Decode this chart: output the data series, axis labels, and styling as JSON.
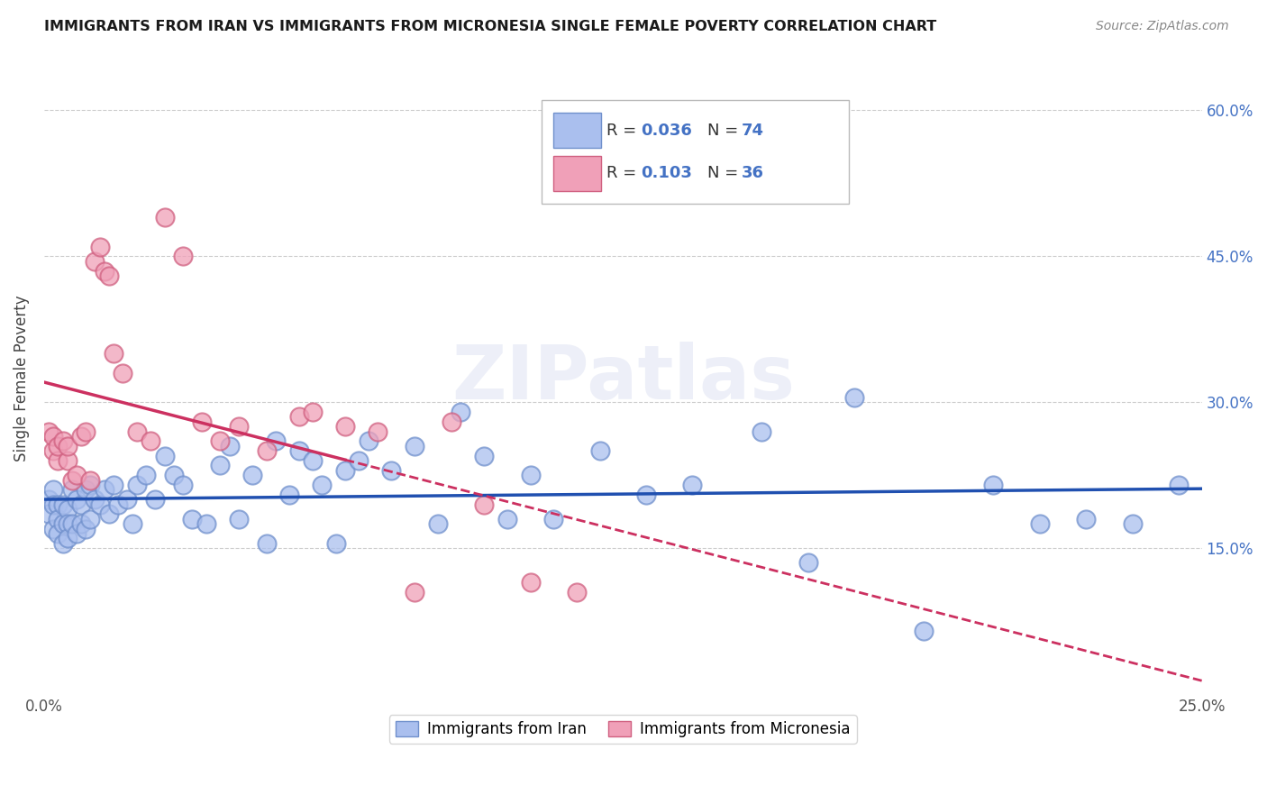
{
  "title": "IMMIGRANTS FROM IRAN VS IMMIGRANTS FROM MICRONESIA SINGLE FEMALE POVERTY CORRELATION CHART",
  "source": "Source: ZipAtlas.com",
  "ylabel": "Single Female Poverty",
  "xlim": [
    0.0,
    0.25
  ],
  "ylim": [
    0.0,
    0.65
  ],
  "iran_color": "#aabfee",
  "iran_edge_color": "#7090cc",
  "micronesia_color": "#f0a0b8",
  "micronesia_edge_color": "#d06080",
  "iran_line_color": "#2050b0",
  "micronesia_line_color": "#cc3060",
  "watermark": "ZIPatlas",
  "iran_R": "0.036",
  "iran_N": "74",
  "micronesia_R": "0.103",
  "micronesia_N": "36",
  "iran_legend_label": "Immigrants from Iran",
  "micronesia_legend_label": "Immigrants from Micronesia",
  "iran_x": [
    0.001,
    0.001,
    0.002,
    0.002,
    0.002,
    0.003,
    0.003,
    0.003,
    0.004,
    0.004,
    0.004,
    0.005,
    0.005,
    0.005,
    0.006,
    0.006,
    0.007,
    0.007,
    0.008,
    0.008,
    0.009,
    0.009,
    0.01,
    0.01,
    0.011,
    0.012,
    0.013,
    0.014,
    0.015,
    0.016,
    0.018,
    0.019,
    0.02,
    0.022,
    0.024,
    0.026,
    0.028,
    0.03,
    0.032,
    0.035,
    0.038,
    0.04,
    0.042,
    0.045,
    0.048,
    0.05,
    0.053,
    0.055,
    0.058,
    0.06,
    0.063,
    0.065,
    0.068,
    0.07,
    0.075,
    0.08,
    0.085,
    0.09,
    0.095,
    0.1,
    0.105,
    0.11,
    0.12,
    0.13,
    0.14,
    0.155,
    0.165,
    0.175,
    0.19,
    0.205,
    0.215,
    0.225,
    0.235,
    0.245
  ],
  "iran_y": [
    0.2,
    0.185,
    0.21,
    0.195,
    0.17,
    0.195,
    0.18,
    0.165,
    0.195,
    0.175,
    0.155,
    0.19,
    0.175,
    0.16,
    0.21,
    0.175,
    0.2,
    0.165,
    0.195,
    0.175,
    0.21,
    0.17,
    0.215,
    0.18,
    0.2,
    0.195,
    0.21,
    0.185,
    0.215,
    0.195,
    0.2,
    0.175,
    0.215,
    0.225,
    0.2,
    0.245,
    0.225,
    0.215,
    0.18,
    0.175,
    0.235,
    0.255,
    0.18,
    0.225,
    0.155,
    0.26,
    0.205,
    0.25,
    0.24,
    0.215,
    0.155,
    0.23,
    0.24,
    0.26,
    0.23,
    0.255,
    0.175,
    0.29,
    0.245,
    0.18,
    0.225,
    0.18,
    0.25,
    0.205,
    0.215,
    0.27,
    0.135,
    0.305,
    0.065,
    0.215,
    0.175,
    0.18,
    0.175,
    0.215
  ],
  "micronesia_x": [
    0.001,
    0.002,
    0.002,
    0.003,
    0.003,
    0.004,
    0.005,
    0.005,
    0.006,
    0.007,
    0.008,
    0.009,
    0.01,
    0.011,
    0.012,
    0.013,
    0.014,
    0.015,
    0.017,
    0.02,
    0.023,
    0.026,
    0.03,
    0.034,
    0.038,
    0.042,
    0.048,
    0.055,
    0.058,
    0.065,
    0.072,
    0.08,
    0.088,
    0.095,
    0.105,
    0.115
  ],
  "micronesia_y": [
    0.27,
    0.25,
    0.265,
    0.24,
    0.255,
    0.26,
    0.24,
    0.255,
    0.22,
    0.225,
    0.265,
    0.27,
    0.22,
    0.445,
    0.46,
    0.435,
    0.43,
    0.35,
    0.33,
    0.27,
    0.26,
    0.49,
    0.45,
    0.28,
    0.26,
    0.275,
    0.25,
    0.285,
    0.29,
    0.275,
    0.27,
    0.105,
    0.28,
    0.195,
    0.115,
    0.105
  ]
}
